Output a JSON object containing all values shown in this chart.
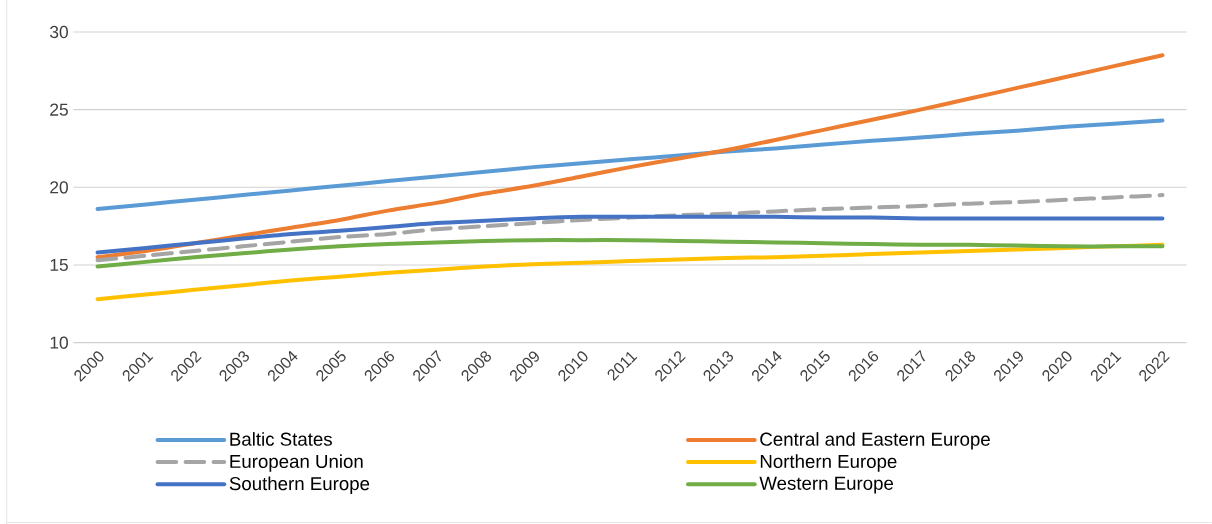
{
  "chart_data": {
    "type": "line",
    "categories": [
      "2000",
      "2001",
      "2002",
      "2003",
      "2004",
      "2005",
      "2006",
      "2007",
      "2008",
      "2009",
      "2010",
      "2011",
      "2012",
      "2013",
      "2014",
      "2015",
      "2016",
      "2017",
      "2018",
      "2019",
      "2020",
      "2021",
      "2022"
    ],
    "ylim": [
      10,
      30
    ],
    "yticks": [
      10,
      15,
      20,
      25,
      30
    ],
    "grid": "y",
    "legend": "bottom",
    "marker": "none",
    "series": [
      {
        "name": "Baltic States",
        "color": "#5b9bd5",
        "line_style": "solid",
        "values": [
          18.6,
          18.9,
          19.2,
          19.5,
          19.8,
          20.1,
          20.4,
          20.7,
          21.0,
          21.3,
          21.55,
          21.8,
          22.05,
          22.3,
          22.5,
          22.75,
          23.0,
          23.2,
          23.45,
          23.65,
          23.9,
          24.1,
          24.3
        ]
      },
      {
        "name": "Central and Eastern Europe",
        "color": "#ed7d31",
        "line_style": "solid",
        "values": [
          15.5,
          15.9,
          16.4,
          16.9,
          17.4,
          17.9,
          18.5,
          19.0,
          19.6,
          20.1,
          20.7,
          21.3,
          21.85,
          22.4,
          23.05,
          23.7,
          24.35,
          25.0,
          25.7,
          26.4,
          27.1,
          27.8,
          28.5
        ]
      },
      {
        "name": "European Union",
        "color": "#a5a5a5",
        "line_style": "dashed",
        "values": [
          15.3,
          15.6,
          15.9,
          16.2,
          16.5,
          16.8,
          17.0,
          17.3,
          17.5,
          17.7,
          17.9,
          18.05,
          18.2,
          18.3,
          18.45,
          18.6,
          18.7,
          18.8,
          18.95,
          19.05,
          19.2,
          19.35,
          19.5
        ]
      },
      {
        "name": "Northern Europe",
        "color": "#ffc000",
        "line_style": "solid",
        "values": [
          12.8,
          13.1,
          13.4,
          13.7,
          14.0,
          14.25,
          14.5,
          14.7,
          14.9,
          15.05,
          15.15,
          15.25,
          15.35,
          15.45,
          15.5,
          15.6,
          15.7,
          15.8,
          15.9,
          16.0,
          16.1,
          16.2,
          16.3
        ]
      },
      {
        "name": "Southern Europe",
        "color": "#4472c4",
        "line_style": "solid",
        "values": [
          15.8,
          16.1,
          16.4,
          16.7,
          17.0,
          17.2,
          17.45,
          17.7,
          17.85,
          18.0,
          18.1,
          18.1,
          18.1,
          18.1,
          18.1,
          18.05,
          18.05,
          18.0,
          18.0,
          18.0,
          18.0,
          18.0,
          18.0
        ]
      },
      {
        "name": "Western Europe",
        "color": "#70ad47",
        "line_style": "solid",
        "values": [
          14.9,
          15.2,
          15.5,
          15.75,
          16.0,
          16.2,
          16.35,
          16.45,
          16.55,
          16.6,
          16.6,
          16.6,
          16.55,
          16.5,
          16.45,
          16.4,
          16.35,
          16.3,
          16.3,
          16.25,
          16.2,
          16.2,
          16.2
        ]
      }
    ]
  }
}
